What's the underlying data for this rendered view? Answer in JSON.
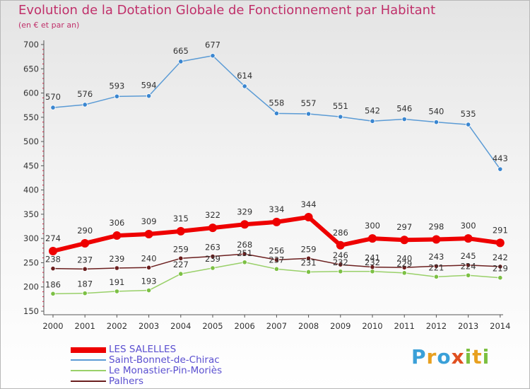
{
  "header": {
    "title": "Evolution de la Dotation Globale de Fonctionnement par Habitant",
    "subtitle": "(en € et par an)"
  },
  "logo": {
    "text": "Proxiti"
  },
  "chart_data": {
    "type": "line",
    "title": "Evolution de la Dotation Globale de Fonctionnement par Habitant",
    "subtitle": "(en € et par an)",
    "xlabel": "",
    "ylabel": "",
    "ylim": [
      150,
      700
    ],
    "yticks": [
      150,
      200,
      250,
      300,
      350,
      400,
      450,
      500,
      550,
      600,
      650,
      700
    ],
    "categories": [
      "2000",
      "2001",
      "2002",
      "2003",
      "2004",
      "2005",
      "2006",
      "2007",
      "2008",
      "2009",
      "2010",
      "2011",
      "2012",
      "2013",
      "2014"
    ],
    "grid": false,
    "legend_position": "bottom-left",
    "series": [
      {
        "name": "Saint-Bonnet-de-Chirac",
        "color": "#5b9bd5",
        "marker": "#3a86d0",
        "values": [
          570,
          576,
          593,
          594,
          665,
          677,
          614,
          558,
          557,
          551,
          542,
          546,
          540,
          535,
          443
        ]
      },
      {
        "name": "Le Monastier-Pin-Moriès",
        "color": "#99d069",
        "marker": "#7cc044",
        "values": [
          186,
          187,
          191,
          193,
          227,
          239,
          251,
          237,
          231,
          232,
          232,
          229,
          221,
          224,
          219
        ]
      },
      {
        "name": "Palhers",
        "color": "#6b1f1f",
        "marker": "#6b1f1f",
        "values": [
          238,
          237,
          239,
          240,
          259,
          263,
          268,
          256,
          259,
          246,
          241,
          240,
          243,
          245,
          242
        ]
      },
      {
        "name": "LES SALELLES",
        "color": "#ee0000",
        "marker": "#ee0000",
        "values": [
          274,
          290,
          306,
          309,
          315,
          322,
          329,
          334,
          344,
          286,
          300,
          297,
          298,
          300,
          291
        ]
      }
    ],
    "data_labels": {
      "Saint-Bonnet-de-Chirac": [
        "570",
        "576",
        "593",
        "594",
        "665",
        "677",
        "614",
        "558",
        "557",
        "551",
        "542",
        "546",
        "540",
        "535",
        "443"
      ],
      "LES SALELLES": [
        "274",
        "290",
        "306",
        "309",
        "315",
        "322",
        "329",
        "334",
        "344",
        "286",
        "300",
        "297",
        "298",
        "300",
        "291"
      ],
      "Palhers": [
        "238",
        "237",
        "239",
        "240",
        "259",
        "263",
        "268",
        "256",
        "259",
        "246",
        "241",
        "240",
        "243",
        "245",
        "242"
      ],
      "Le Monastier-Pin-Moriès": [
        "186",
        "187",
        "191",
        "193",
        "227",
        "239",
        "251",
        "237",
        "231",
        "232",
        "232",
        "229",
        "221",
        "224",
        "219"
      ]
    },
    "legend": [
      "LES SALELLES",
      "Saint-Bonnet-de-Chirac",
      "Le Monastier-Pin-Moriès",
      "Palhers"
    ]
  }
}
